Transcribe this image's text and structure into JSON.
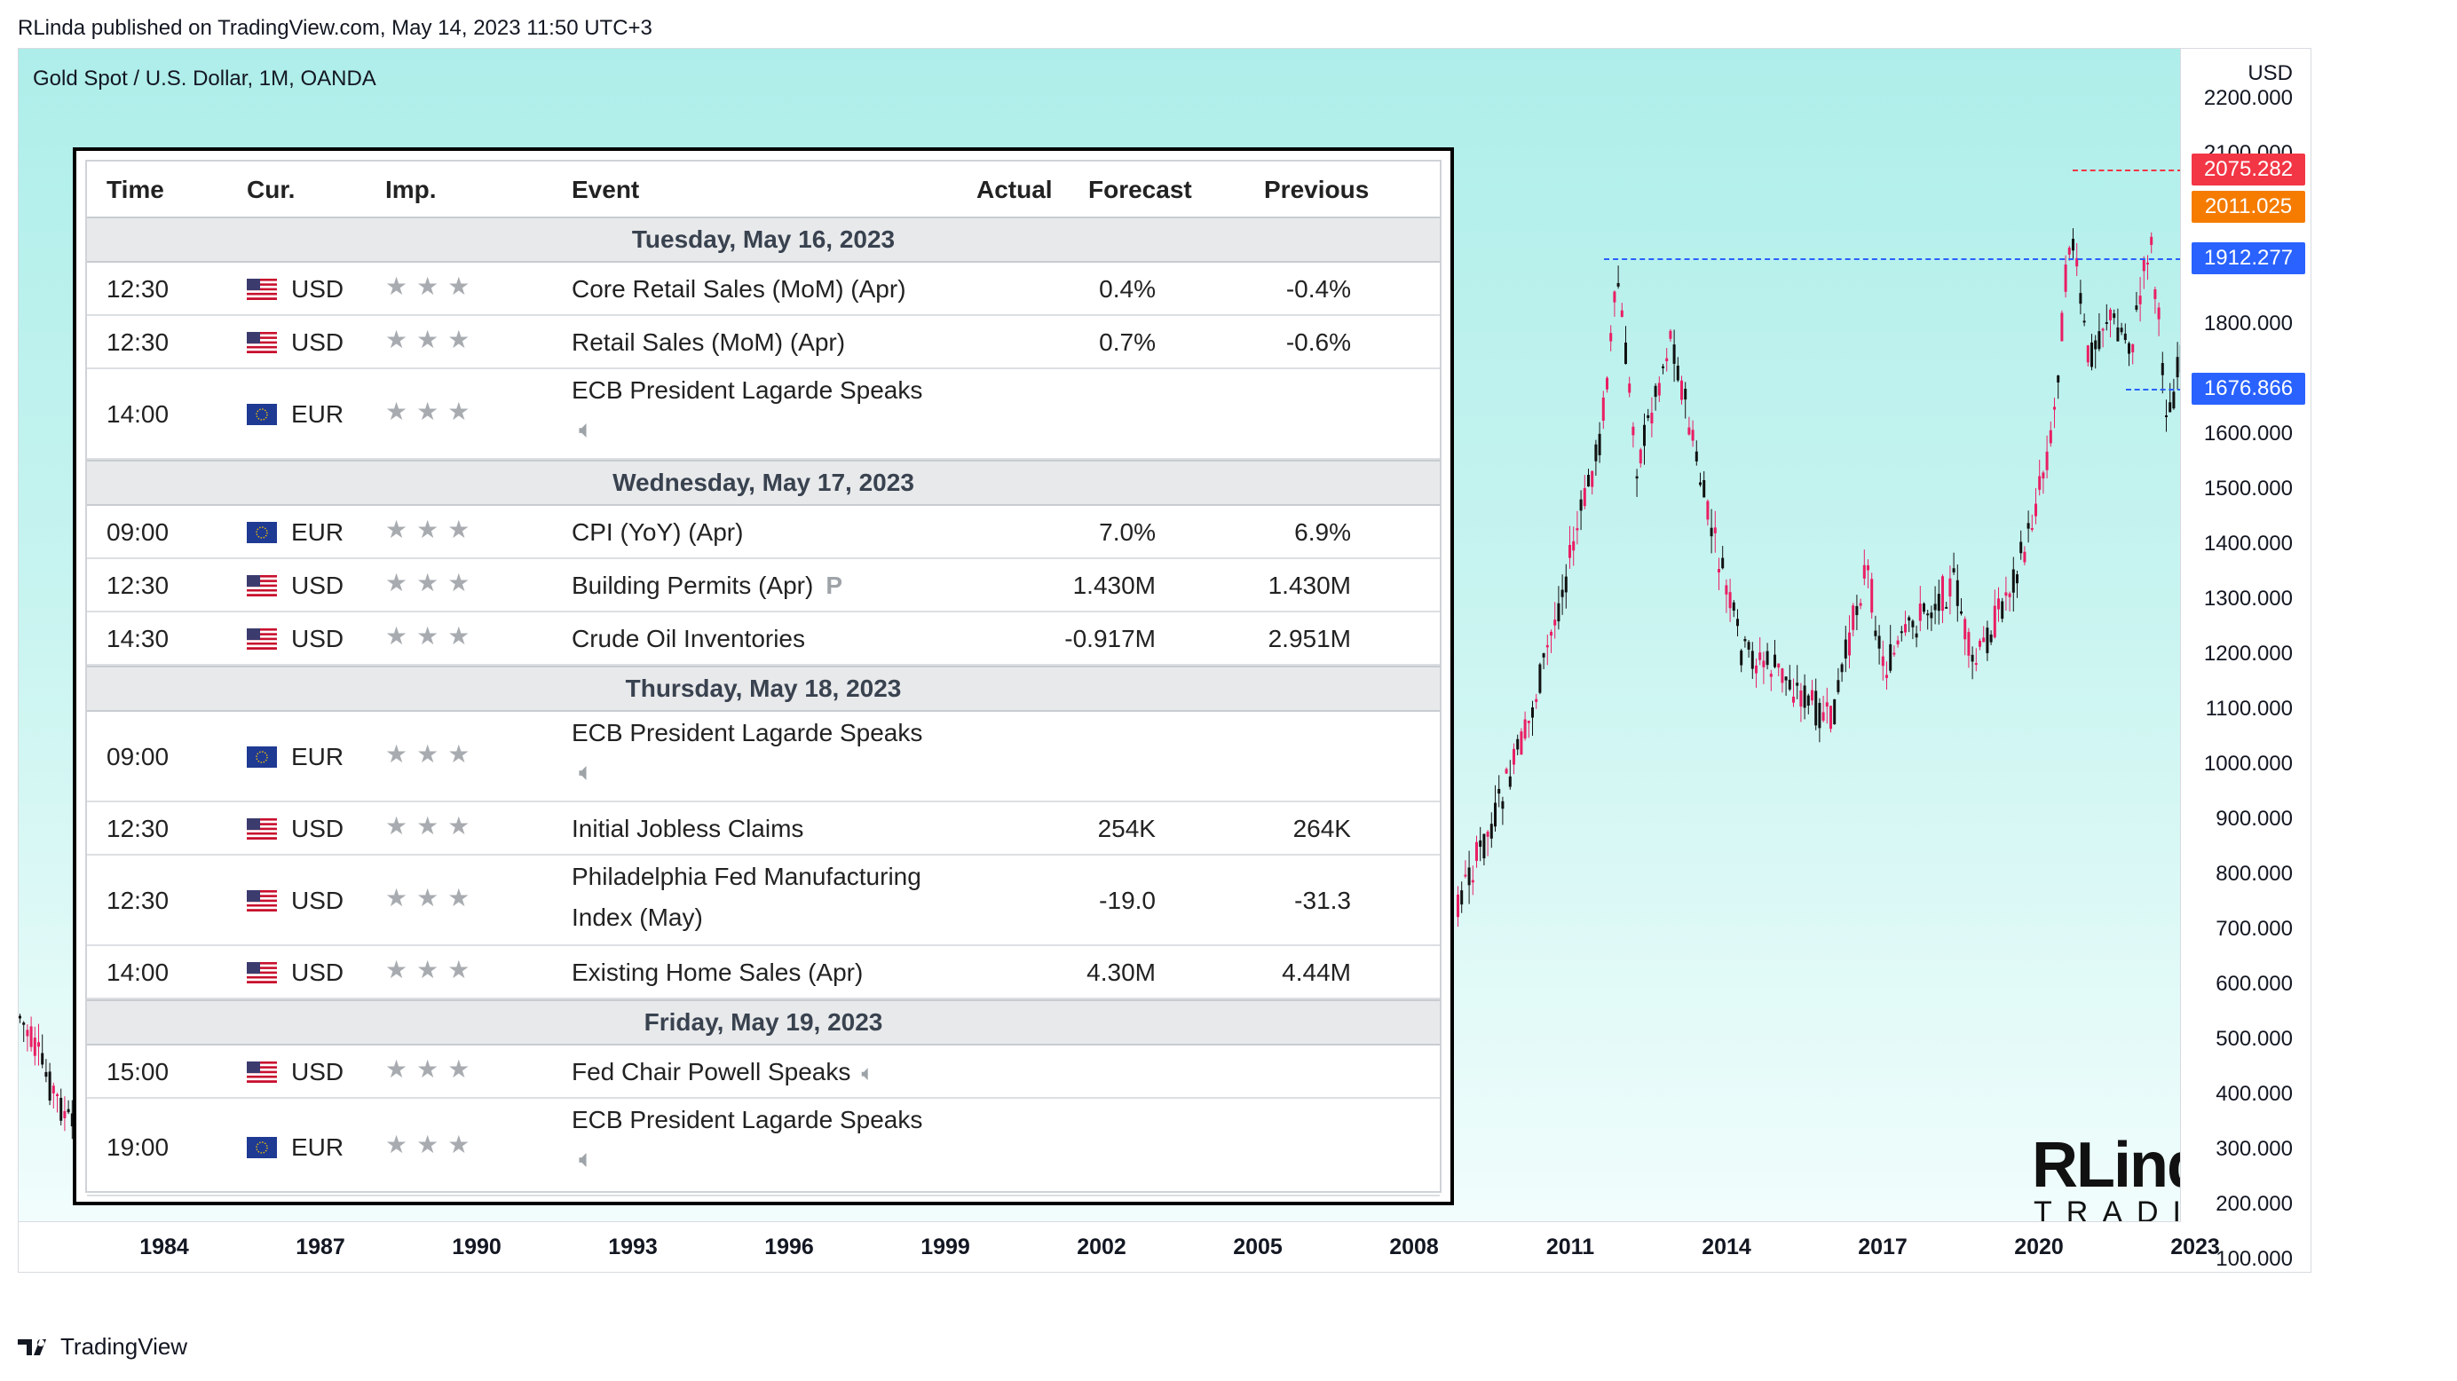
{
  "header_line": "RLinda published on TradingView.com, May 14, 2023 11:50 UTC+3",
  "symbol": "Gold Spot / U.S. Dollar, 1M, OANDA",
  "currency_label": "USD",
  "price_labels": [
    "2200.000",
    "2100.000",
    "1800.000",
    "1600.000",
    "1500.000",
    "1400.000",
    "1300.000",
    "1200.000",
    "1100.000",
    "1000.000",
    "900.000",
    "800.000",
    "700.000",
    "600.000",
    "500.000",
    "400.000",
    "300.000",
    "200.000",
    "100.000"
  ],
  "price_tags": {
    "high": {
      "text": "2075.282",
      "color": "#f23645"
    },
    "current": {
      "text": "2011.025",
      "color": "#f57c00"
    },
    "mid": {
      "text": "1912.277",
      "color": "#2962ff"
    },
    "low": {
      "text": "1676.866",
      "color": "#2962ff"
    }
  },
  "year_labels": [
    "1984",
    "1987",
    "1990",
    "1993",
    "1996",
    "1999",
    "2002",
    "2005",
    "2008",
    "2011",
    "2014",
    "2017",
    "2020",
    "2023"
  ],
  "footer_logo_text": "TradingView",
  "brand": {
    "line1": "RLinda",
    "line2": "TRADING"
  },
  "calendar": {
    "headers": {
      "time": "Time",
      "cur": "Cur.",
      "imp": "Imp.",
      "event": "Event",
      "actual": "Actual",
      "forecast": "Forecast",
      "previous": "Previous"
    },
    "days": [
      {
        "label": "Tuesday, May 16, 2023"
      },
      {
        "label": "Wednesday, May 17, 2023"
      },
      {
        "label": "Thursday, May 18, 2023"
      },
      {
        "label": "Friday, May 19, 2023"
      }
    ],
    "rows": [
      {
        "time": "12:30",
        "cur": "USD",
        "event": "Core Retail Sales (MoM) (Apr)",
        "event2": "",
        "forecast": "0.4%",
        "previous": "-0.4%"
      },
      {
        "time": "12:30",
        "cur": "USD",
        "event": "Retail Sales (MoM) (Apr)",
        "event2": "",
        "forecast": "0.7%",
        "previous": "-0.6%"
      },
      {
        "time": "14:00",
        "cur": "EUR",
        "event": "ECB President Lagarde Speaks",
        "event2": "",
        "forecast": "",
        "previous": ""
      },
      {
        "time": "09:00",
        "cur": "EUR",
        "event": "CPI (YoY) (Apr)",
        "event2": "",
        "forecast": "7.0%",
        "previous": "6.9%"
      },
      {
        "time": "12:30",
        "cur": "USD",
        "event": "Building Permits (Apr)",
        "event2": "",
        "forecast": "1.430M",
        "previous": "1.430M"
      },
      {
        "time": "14:30",
        "cur": "USD",
        "event": "Crude Oil Inventories",
        "event2": "",
        "forecast": "-0.917M",
        "previous": "2.951M"
      },
      {
        "time": "09:00",
        "cur": "EUR",
        "event": "ECB President Lagarde Speaks",
        "event2": "",
        "forecast": "",
        "previous": ""
      },
      {
        "time": "12:30",
        "cur": "USD",
        "event": "Initial Jobless Claims",
        "event2": "",
        "forecast": "254K",
        "previous": "264K"
      },
      {
        "time": "12:30",
        "cur": "USD",
        "event": "Philadelphia Fed Manufacturing",
        "event2": "Index (May)",
        "forecast": "-19.0",
        "previous": "-31.3"
      },
      {
        "time": "14:00",
        "cur": "USD",
        "event": "Existing Home Sales (Apr)",
        "event2": "",
        "forecast": "4.30M",
        "previous": "4.44M"
      },
      {
        "time": "15:00",
        "cur": "USD",
        "event": "Fed Chair Powell Speaks",
        "event2": "",
        "forecast": "",
        "previous": ""
      },
      {
        "time": "19:00",
        "cur": "EUR",
        "event": "ECB President Lagarde Speaks",
        "event2": "",
        "forecast": "",
        "previous": ""
      }
    ]
  },
  "icons": {
    "star": "star-icon",
    "speaker": "speaker-icon",
    "preliminary": "P"
  }
}
